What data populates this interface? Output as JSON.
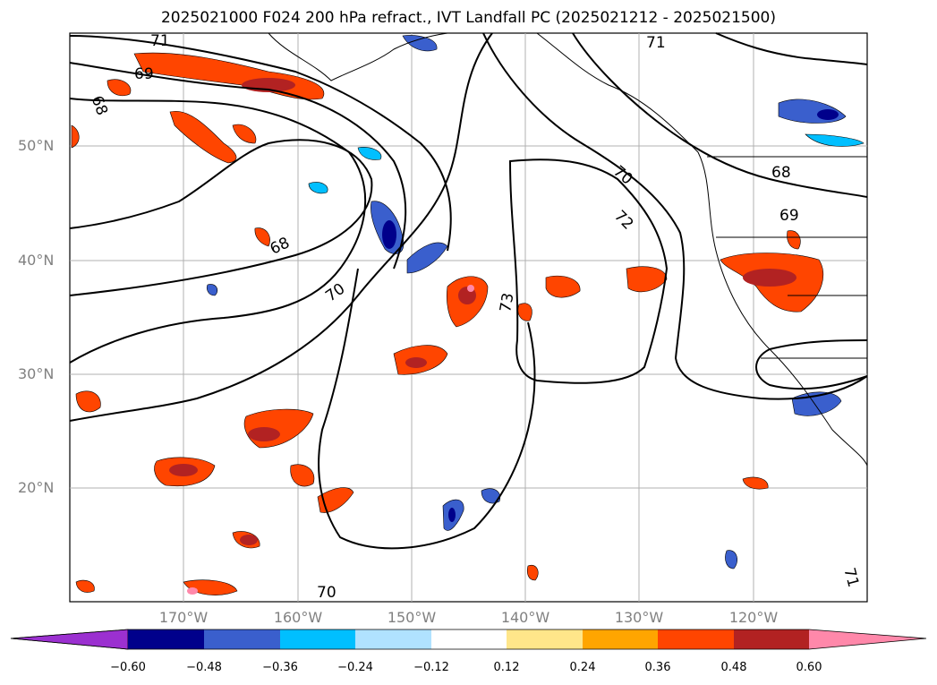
{
  "title": "2025021000 F024 200 hPa refract., IVT Landfall PC (2025021212 - 2025021500)",
  "lat_labels": [
    "50°N",
    "40°N",
    "30°N",
    "20°N"
  ],
  "lon_labels": [
    "170°W",
    "160°W",
    "150°W",
    "140°W",
    "130°W",
    "120°W"
  ],
  "contour_labels": [
    "71",
    "69",
    "68",
    "68",
    "70",
    "73",
    "72",
    "70",
    "71",
    "68",
    "69",
    "71",
    "70"
  ],
  "colorbar": {
    "ticks": [
      "−0.60",
      "−0.48",
      "−0.36",
      "−0.24",
      "−0.12",
      "0.12",
      "0.24",
      "0.36",
      "0.48",
      "0.60"
    ],
    "colors": [
      "#9b30d0",
      "#00008b",
      "#3a5fcd",
      "#00bfff",
      "#b0e2ff",
      "#ffffff",
      "#ffe68a",
      "#ffa500",
      "#ff4500",
      "#b22222",
      "#ff88aa"
    ]
  },
  "colors": {
    "land_outline": "#000000",
    "grid": "#b0b0b0",
    "contour": "#000000"
  }
}
